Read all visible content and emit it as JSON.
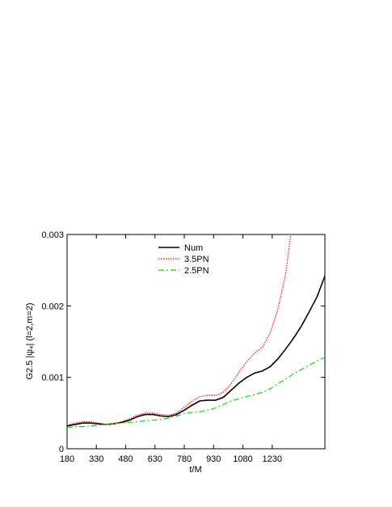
{
  "chart_data": {
    "type": "line",
    "xlabel": "t/M",
    "ylabel": "G2.5 |ψ₄| (l=2,m=2)",
    "xlim": [
      180,
      1500
    ],
    "ylim": [
      0,
      0.003
    ],
    "x_ticks": [
      {
        "value": 180,
        "label": "180"
      },
      {
        "value": 330,
        "label": "330"
      },
      {
        "value": 480,
        "label": "480"
      },
      {
        "value": 630,
        "label": "630"
      },
      {
        "value": 780,
        "label": "780"
      },
      {
        "value": 930,
        "label": "930"
      },
      {
        "value": 1080,
        "label": "1080"
      },
      {
        "value": 1230,
        "label": "1230"
      }
    ],
    "y_ticks": [
      {
        "value": 0,
        "label": "0"
      },
      {
        "value": 0.001,
        "label": "0.001"
      },
      {
        "value": 0.002,
        "label": "0.002"
      },
      {
        "value": 0.003,
        "label": "0.003"
      }
    ],
    "legend_position": "top-left",
    "series": [
      {
        "name": "Num",
        "color": "#000000",
        "dash": "solid",
        "x": [
          180,
          220,
          260,
          300,
          340,
          380,
          420,
          460,
          500,
          540,
          580,
          620,
          660,
          700,
          740,
          780,
          820,
          860,
          900,
          940,
          980,
          1020,
          1060,
          1100,
          1140,
          1180,
          1220,
          1260,
          1300,
          1340,
          1380,
          1420,
          1460,
          1500
        ],
        "y": [
          0.00032,
          0.00034,
          0.00036,
          0.00036,
          0.00035,
          0.00034,
          0.00035,
          0.00037,
          0.0004,
          0.00045,
          0.00048,
          0.00048,
          0.00046,
          0.00045,
          0.00048,
          0.00054,
          0.00061,
          0.00067,
          0.00068,
          0.00068,
          0.00072,
          0.00082,
          0.00092,
          0.001,
          0.00106,
          0.00109,
          0.00115,
          0.00126,
          0.0014,
          0.00155,
          0.00172,
          0.00192,
          0.00213,
          0.00242
        ]
      },
      {
        "name": "3.5PN",
        "color": "#ff0000",
        "dash": "dotted",
        "x": [
          180,
          220,
          260,
          300,
          340,
          380,
          420,
          460,
          500,
          540,
          580,
          620,
          660,
          700,
          740,
          780,
          820,
          860,
          900,
          940,
          980,
          1020,
          1060,
          1100,
          1140,
          1180,
          1220,
          1260,
          1300,
          1325
        ],
        "y": [
          0.00033,
          0.00036,
          0.00038,
          0.00038,
          0.00036,
          0.00034,
          0.00035,
          0.00038,
          0.00042,
          0.00047,
          0.0005,
          0.0005,
          0.00048,
          0.00047,
          0.0005,
          0.00058,
          0.00067,
          0.00073,
          0.00075,
          0.00075,
          0.00079,
          0.00091,
          0.00107,
          0.00122,
          0.00134,
          0.00142,
          0.00162,
          0.00196,
          0.00246,
          0.003
        ]
      },
      {
        "name": "2.5PN",
        "color": "#00dd00",
        "dash": "dashdot",
        "x": [
          180,
          220,
          260,
          300,
          340,
          380,
          420,
          460,
          500,
          540,
          580,
          620,
          660,
          700,
          740,
          780,
          820,
          860,
          900,
          940,
          980,
          1020,
          1060,
          1100,
          1140,
          1180,
          1220,
          1260,
          1300,
          1340,
          1380,
          1420,
          1460,
          1500
        ],
        "y": [
          0.0003,
          0.00031,
          0.00031,
          0.00032,
          0.00033,
          0.00034,
          0.00035,
          0.00036,
          0.00037,
          0.00038,
          0.00039,
          0.0004,
          0.00041,
          0.00043,
          0.00046,
          0.00049,
          0.00051,
          0.00052,
          0.00054,
          0.00057,
          0.00062,
          0.00067,
          0.0007,
          0.00073,
          0.00076,
          0.00079,
          0.00084,
          0.00091,
          0.00098,
          0.00105,
          0.00111,
          0.00117,
          0.00123,
          0.00128
        ]
      }
    ]
  }
}
